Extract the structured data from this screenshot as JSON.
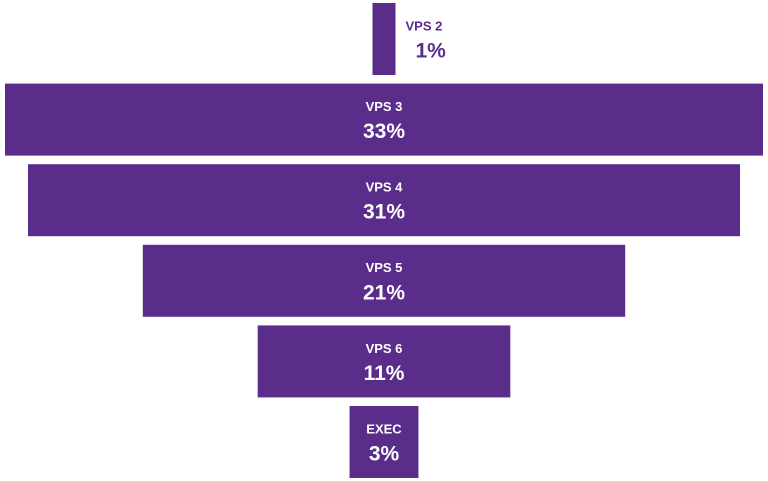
{
  "chart_data": {
    "type": "funnel",
    "categories": [
      "VPS 2",
      "VPS 3",
      "VPS 4",
      "VPS 5",
      "VPS 6",
      "EXEC"
    ],
    "values": [
      1,
      33,
      31,
      21,
      11,
      3
    ],
    "value_labels": [
      "1%",
      "33%",
      "31%",
      "21%",
      "11%",
      "3%"
    ],
    "color": "#5b2d8a"
  }
}
